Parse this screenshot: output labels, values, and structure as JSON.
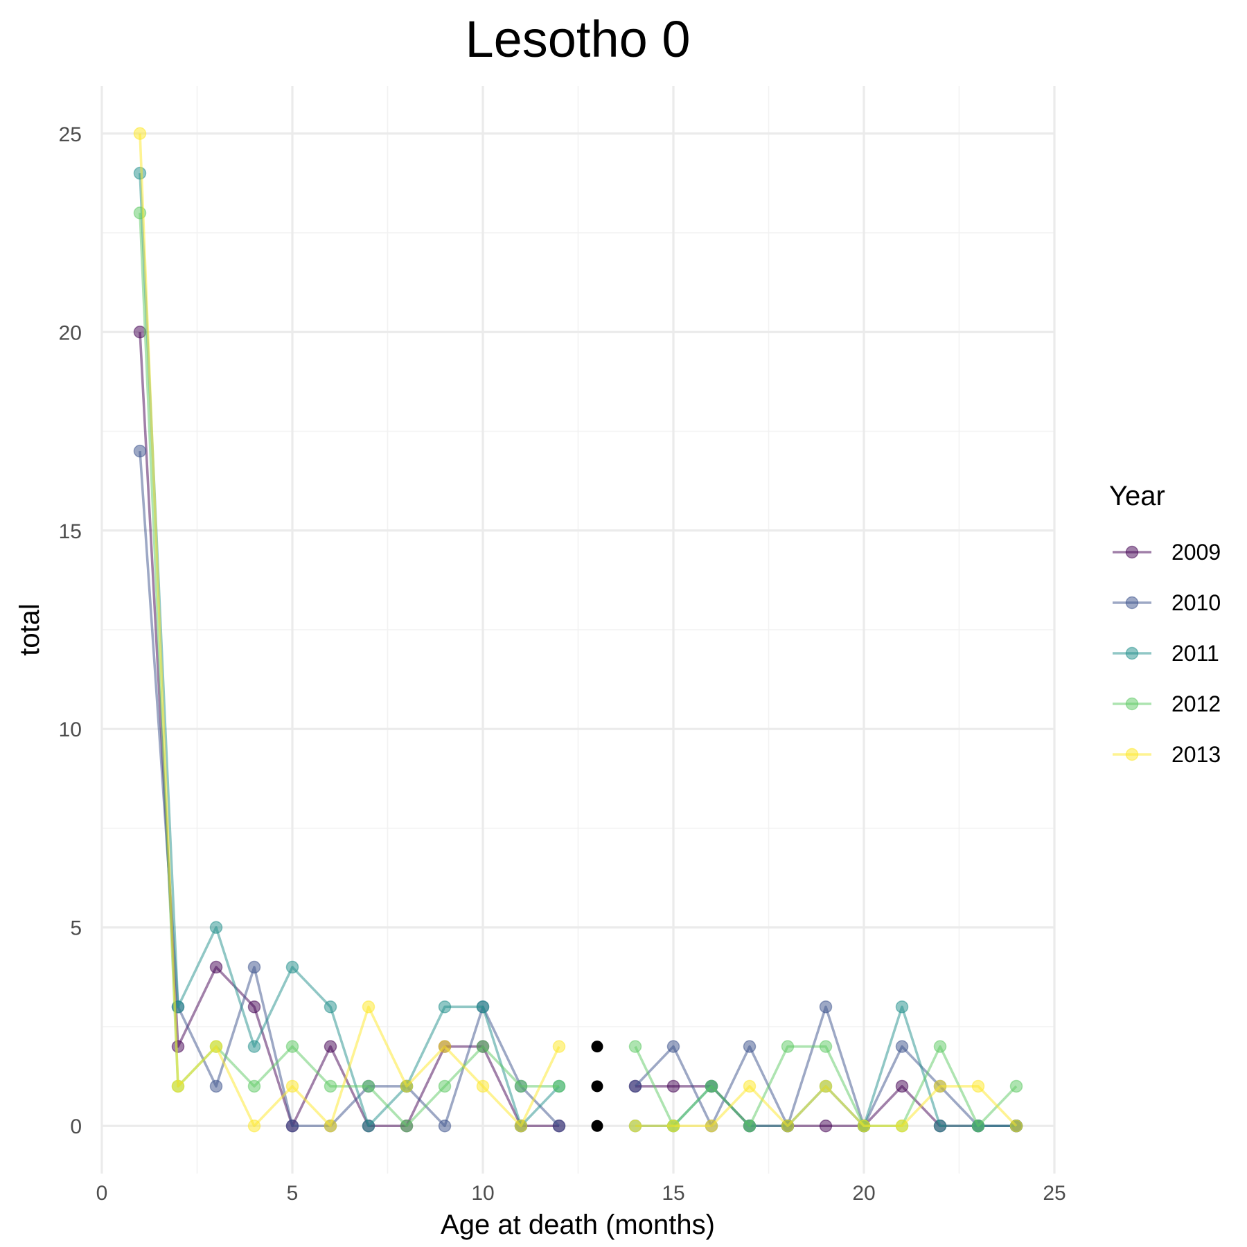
{
  "chart_data": {
    "type": "line",
    "title": "Lesotho 0",
    "xlabel": "Age at death (months)",
    "ylabel": "total",
    "xlim": [
      0,
      25
    ],
    "ylim": [
      -1.2,
      26.2
    ],
    "x_ticks": [
      0,
      5,
      10,
      15,
      20,
      25
    ],
    "y_ticks": [
      0,
      5,
      10,
      15,
      20,
      25
    ],
    "grid": true,
    "legend": {
      "title": "Year",
      "position": "right"
    },
    "x": [
      1,
      2,
      3,
      4,
      5,
      6,
      7,
      8,
      9,
      10,
      11,
      12,
      13,
      14,
      15,
      16,
      17,
      18,
      19,
      20,
      21,
      22,
      23,
      24
    ],
    "series": [
      {
        "name": "2009",
        "color": "#440154",
        "values": [
          20,
          2,
          4,
          3,
          0,
          2,
          0,
          0,
          2,
          2,
          0,
          0,
          null,
          1,
          1,
          1,
          0,
          0,
          0,
          0,
          1,
          0,
          0,
          0
        ]
      },
      {
        "name": "2010",
        "color": "#3b528b",
        "values": [
          17,
          3,
          1,
          4,
          0,
          0,
          1,
          1,
          0,
          3,
          1,
          0,
          null,
          1,
          2,
          0,
          2,
          0,
          3,
          0,
          2,
          1,
          0,
          0
        ]
      },
      {
        "name": "2011",
        "color": "#21908c",
        "values": [
          24,
          3,
          5,
          2,
          4,
          3,
          0,
          1,
          3,
          3,
          0,
          1,
          null,
          0,
          0,
          1,
          0,
          0,
          1,
          0,
          3,
          0,
          0,
          0
        ]
      },
      {
        "name": "2012",
        "color": "#5dc963",
        "values": [
          23,
          1,
          2,
          1,
          2,
          1,
          1,
          0,
          1,
          2,
          1,
          1,
          null,
          2,
          0,
          1,
          0,
          2,
          2,
          0,
          0,
          2,
          0,
          1
        ]
      },
      {
        "name": "2013",
        "color": "#fde725",
        "values": [
          25,
          1,
          2,
          0,
          1,
          0,
          3,
          1,
          2,
          1,
          0,
          2,
          null,
          0,
          0,
          0,
          1,
          0,
          1,
          0,
          0,
          1,
          1,
          0
        ]
      }
    ],
    "na_points": {
      "color": "#000000",
      "x": [
        13,
        13,
        13
      ],
      "values": [
        2,
        1,
        0
      ]
    }
  }
}
